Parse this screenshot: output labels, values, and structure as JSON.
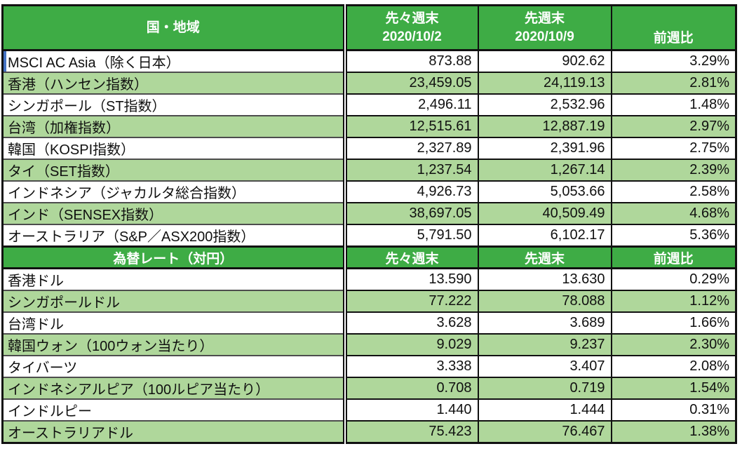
{
  "colors": {
    "header_green": "#3eac45",
    "row_light_green": "#afd79b",
    "selection_blue": "#4472c4"
  },
  "indices": {
    "header": {
      "country": "国・地域",
      "prev_label": "先々週末",
      "prev_date": "2020/10/2",
      "last_label": "先週末",
      "last_date": "2020/10/9",
      "change": "前週比"
    },
    "rows": [
      {
        "label": "MSCI AC Asia（除く日本）",
        "prev": "873.88",
        "last": "902.62",
        "change": "3.29%"
      },
      {
        "label": "香港（ハンセン指数）",
        "prev": "23,459.05",
        "last": "24,119.13",
        "change": "2.81%"
      },
      {
        "label": "シンガポール（ST指数）",
        "prev": "2,496.11",
        "last": "2,532.96",
        "change": "1.48%"
      },
      {
        "label": "台湾（加権指数）",
        "prev": "12,515.61",
        "last": "12,887.19",
        "change": "2.97%"
      },
      {
        "label": "韓国（KOSPI指数）",
        "prev": "2,327.89",
        "last": "2,391.96",
        "change": "2.75%"
      },
      {
        "label": "タイ（SET指数）",
        "prev": "1,237.54",
        "last": "1,267.14",
        "change": "2.39%"
      },
      {
        "label": "インドネシア（ジャカルタ総合指数）",
        "prev": "4,926.73",
        "last": "5,053.66",
        "change": "2.58%"
      },
      {
        "label": "インド（SENSEX指数）",
        "prev": "38,697.05",
        "last": "40,509.49",
        "change": "4.68%"
      },
      {
        "label": "オーストラリア（S&P／ASX200指数）",
        "prev": "5,791.50",
        "last": "6,102.17",
        "change": "5.36%"
      }
    ]
  },
  "fx": {
    "header": {
      "title": "為替レート（対円）",
      "prev": "先々週末",
      "last": "先週末",
      "change": "前週比"
    },
    "rows": [
      {
        "label": "香港ドル",
        "prev": "13.590",
        "last": "13.630",
        "change": "0.29%"
      },
      {
        "label": "シンガポールドル",
        "prev": "77.222",
        "last": "78.088",
        "change": "1.12%"
      },
      {
        "label": "台湾ドル",
        "prev": "3.628",
        "last": "3.689",
        "change": "1.66%"
      },
      {
        "label": "韓国ウォン（100ウォン当たり）",
        "prev": "9.029",
        "last": "9.237",
        "change": "2.30%"
      },
      {
        "label": "タイバーツ",
        "prev": "3.338",
        "last": "3.407",
        "change": "2.08%"
      },
      {
        "label": "インドネシアルピア（100ルピア当たり）",
        "prev": "0.708",
        "last": "0.719",
        "change": "1.54%"
      },
      {
        "label": "インドルピー",
        "prev": "1.440",
        "last": "1.444",
        "change": "0.31%"
      },
      {
        "label": "オーストラリアドル",
        "prev": "75.423",
        "last": "76.467",
        "change": "1.38%"
      }
    ]
  }
}
